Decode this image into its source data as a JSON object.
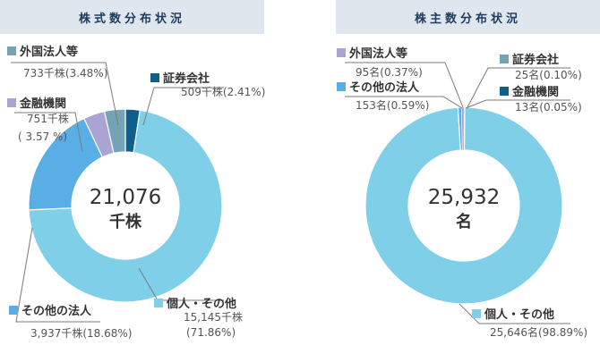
{
  "chart_data": [
    {
      "type": "pie",
      "title": "株式数分布状況",
      "center_value": "21,076",
      "center_unit": "千株",
      "slices": [
        {
          "name": "証券会社",
          "value": 509,
          "value_text": "509千株(2.41%)",
          "percent": 2.41,
          "color": "#0e5f8c"
        },
        {
          "name": "個人・その他",
          "value": 15145,
          "value_text": "15,145千株",
          "percent_text": "(71.86%)",
          "percent": 71.86,
          "color": "#7fcfe8"
        },
        {
          "name": "その他の法人",
          "value": 3937,
          "value_text": "3,937千株(18.68%)",
          "percent": 18.68,
          "color": "#5aaee6"
        },
        {
          "name": "金融機関",
          "value": 751,
          "value_text": "751千株",
          "percent_text": "( 3.57 %)",
          "percent": 3.57,
          "color": "#a9a4d3"
        },
        {
          "name": "外国法人等",
          "value": 733,
          "value_text": "733千株(3.48%)",
          "percent": 3.48,
          "color": "#73a3b5"
        }
      ]
    },
    {
      "type": "pie",
      "title": "株主数分布状況",
      "center_value": "25,932",
      "center_unit": "名",
      "slices": [
        {
          "name": "証券会社",
          "value": 25,
          "value_text": "25名(0.10%)",
          "percent": 0.1,
          "color": "#73a3b5"
        },
        {
          "name": "金融機関",
          "value": 13,
          "value_text": "13名(0.05%)",
          "percent": 0.05,
          "color": "#0e5f8c"
        },
        {
          "name": "個人・その他",
          "value": 25646,
          "value_text": "25,646名(98.89%)",
          "percent": 98.89,
          "color": "#7fcfe8"
        },
        {
          "name": "その他の法人",
          "value": 153,
          "value_text": "153名(0.59%)",
          "percent": 0.59,
          "color": "#5aaee6"
        },
        {
          "name": "外国法人等",
          "value": 95,
          "value_text": "95名(0.37%)",
          "percent": 0.37,
          "color": "#a9a4d3"
        }
      ]
    }
  ]
}
